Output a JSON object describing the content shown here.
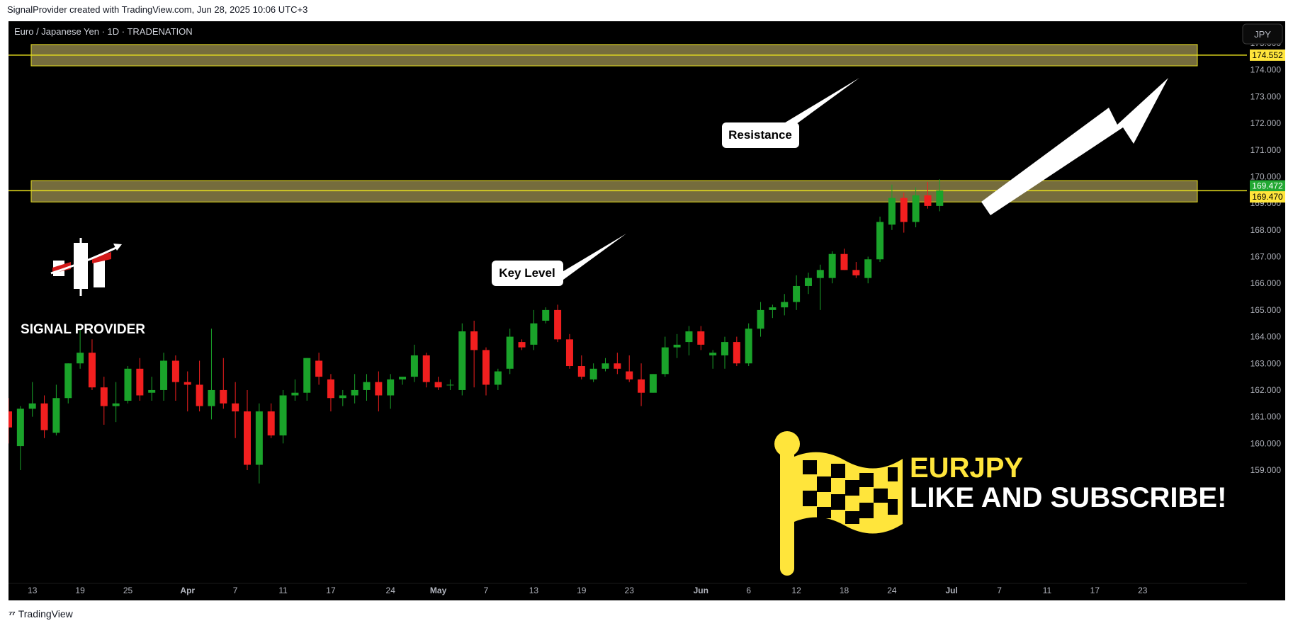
{
  "header": {
    "attribution": "SignalProvider created with TradingView.com, Jun 28, 2025 10:06 UTC+3"
  },
  "footer": {
    "brand": "TradingView"
  },
  "chart": {
    "symbol_title": "Euro / Japanese Yen · 1D · TRADENATION",
    "currency_button": "JPY",
    "logo_text": "SIGNAL PROVIDER",
    "annotations": {
      "resistance": "Resistance",
      "key_level": "Key Level"
    },
    "banner": {
      "pair": "EURJPY",
      "cta": "LIKE AND SUBSCRIBE!"
    },
    "price_tags": {
      "resistance": "174.552",
      "current": "169.472",
      "key_level": "169.470"
    }
  },
  "colors": {
    "background": "#000000",
    "up": "#1aa32a",
    "down": "#f21f1f",
    "zone_fill": "#756c3d",
    "zone_line": "#e8e01e",
    "banner_yellow": "#ffe53b",
    "current_tag": "#22a832"
  },
  "chart_data": {
    "type": "candlestick",
    "title": "Euro / Japanese Yen · 1D · TRADENATION",
    "y_axis": {
      "range": [
        158.4,
        175.3
      ],
      "ticks": [
        "159.000",
        "160.000",
        "161.000",
        "162.000",
        "163.000",
        "164.000",
        "165.000",
        "166.000",
        "167.000",
        "168.000",
        "169.000",
        "170.000",
        "171.000",
        "172.000",
        "173.000",
        "174.000",
        "175.000"
      ]
    },
    "x_axis": {
      "ticks": [
        {
          "label": "13",
          "month": false,
          "bar": 2
        },
        {
          "label": "19",
          "month": false,
          "bar": 6
        },
        {
          "label": "25",
          "month": false,
          "bar": 10
        },
        {
          "label": "Apr",
          "month": true,
          "bar": 15
        },
        {
          "label": "7",
          "month": false,
          "bar": 19
        },
        {
          "label": "11",
          "month": false,
          "bar": 23
        },
        {
          "label": "17",
          "month": false,
          "bar": 27
        },
        {
          "label": "24",
          "month": false,
          "bar": 32
        },
        {
          "label": "May",
          "month": true,
          "bar": 36
        },
        {
          "label": "7",
          "month": false,
          "bar": 40
        },
        {
          "label": "13",
          "month": false,
          "bar": 44
        },
        {
          "label": "19",
          "month": false,
          "bar": 48
        },
        {
          "label": "23",
          "month": false,
          "bar": 52
        },
        {
          "label": "Jun",
          "month": true,
          "bar": 58
        },
        {
          "label": "6",
          "month": false,
          "bar": 62
        },
        {
          "label": "12",
          "month": false,
          "bar": 66
        },
        {
          "label": "18",
          "month": false,
          "bar": 70
        },
        {
          "label": "24",
          "month": false,
          "bar": 74
        },
        {
          "label": "Jul",
          "month": true,
          "bar": 79
        },
        {
          "label": "7",
          "month": false,
          "bar": 83
        },
        {
          "label": "11",
          "month": false,
          "bar": 87
        },
        {
          "label": "17",
          "month": false,
          "bar": 91
        },
        {
          "label": "23",
          "month": false,
          "bar": 95
        }
      ]
    },
    "zones": [
      {
        "name": "Resistance",
        "low": 174.15,
        "high": 174.95,
        "line": 174.552
      },
      {
        "name": "Key Level",
        "low": 169.05,
        "high": 169.85,
        "line": 169.47
      }
    ],
    "last_price": 169.472,
    "ohlc": [
      [
        161.2,
        161.7,
        160.0,
        160.6
      ],
      [
        159.9,
        161.4,
        159.0,
        161.3
      ],
      [
        161.3,
        162.3,
        161.0,
        161.5
      ],
      [
        161.5,
        161.8,
        160.2,
        160.5
      ],
      [
        160.4,
        162.2,
        160.3,
        161.7
      ],
      [
        161.7,
        163.0,
        161.5,
        163.0
      ],
      [
        163.0,
        164.3,
        162.8,
        163.4
      ],
      [
        163.4,
        163.9,
        162.0,
        162.1
      ],
      [
        162.1,
        162.5,
        160.7,
        161.4
      ],
      [
        161.4,
        162.3,
        160.8,
        161.5
      ],
      [
        161.6,
        162.9,
        161.5,
        162.8
      ],
      [
        162.8,
        163.2,
        161.6,
        161.8
      ],
      [
        161.9,
        162.5,
        161.6,
        162.0
      ],
      [
        162.0,
        163.4,
        161.6,
        163.1
      ],
      [
        163.1,
        163.3,
        161.6,
        162.3
      ],
      [
        162.3,
        162.7,
        161.2,
        162.2
      ],
      [
        162.2,
        163.1,
        161.2,
        161.4
      ],
      [
        161.4,
        164.3,
        160.9,
        162.0
      ],
      [
        162.0,
        163.2,
        161.3,
        161.5
      ],
      [
        161.5,
        162.3,
        160.2,
        161.2
      ],
      [
        161.2,
        162.0,
        159.0,
        159.2
      ],
      [
        159.2,
        161.5,
        158.5,
        161.2
      ],
      [
        161.2,
        161.5,
        160.2,
        160.3
      ],
      [
        160.3,
        162.0,
        160.0,
        161.8
      ],
      [
        161.8,
        162.4,
        161.6,
        161.9
      ],
      [
        161.9,
        163.2,
        161.6,
        163.2
      ],
      [
        163.1,
        163.4,
        162.2,
        162.5
      ],
      [
        162.4,
        162.6,
        161.2,
        161.7
      ],
      [
        161.7,
        162.0,
        161.4,
        161.8
      ],
      [
        161.8,
        162.6,
        161.5,
        162.0
      ],
      [
        162.0,
        162.6,
        161.6,
        162.3
      ],
      [
        162.3,
        162.7,
        161.2,
        161.8
      ],
      [
        161.8,
        162.6,
        161.3,
        162.4
      ],
      [
        162.4,
        162.5,
        162.2,
        162.5
      ],
      [
        162.5,
        163.7,
        162.3,
        163.3
      ],
      [
        163.3,
        163.4,
        162.1,
        162.3
      ],
      [
        162.3,
        162.5,
        162.0,
        162.1
      ],
      [
        162.2,
        162.4,
        162.0,
        162.2
      ],
      [
        162.0,
        164.5,
        161.8,
        164.2
      ],
      [
        164.2,
        164.6,
        162.1,
        163.5
      ],
      [
        163.5,
        163.6,
        161.8,
        162.2
      ],
      [
        162.2,
        162.8,
        162.0,
        162.7
      ],
      [
        162.8,
        164.3,
        162.6,
        164.0
      ],
      [
        163.8,
        163.9,
        163.5,
        163.6
      ],
      [
        163.7,
        165.0,
        163.5,
        164.5
      ],
      [
        164.6,
        165.1,
        164.5,
        165.0
      ],
      [
        165.0,
        165.2,
        163.8,
        163.9
      ],
      [
        163.9,
        164.1,
        162.8,
        162.9
      ],
      [
        162.9,
        163.3,
        162.4,
        162.5
      ],
      [
        162.4,
        163.0,
        162.3,
        162.8
      ],
      [
        162.8,
        163.2,
        162.7,
        163.0
      ],
      [
        163.0,
        163.4,
        162.6,
        162.8
      ],
      [
        162.7,
        163.3,
        162.3,
        162.4
      ],
      [
        162.4,
        163.0,
        161.4,
        161.9
      ],
      [
        161.9,
        162.6,
        161.9,
        162.6
      ],
      [
        162.6,
        164.0,
        162.5,
        163.6
      ],
      [
        163.6,
        164.1,
        163.2,
        163.7
      ],
      [
        163.8,
        164.4,
        163.3,
        164.2
      ],
      [
        164.2,
        164.4,
        163.5,
        163.7
      ],
      [
        163.3,
        163.5,
        162.8,
        163.4
      ],
      [
        163.3,
        164.0,
        162.8,
        163.8
      ],
      [
        163.8,
        164.0,
        162.9,
        163.0
      ],
      [
        163.0,
        164.5,
        162.9,
        164.3
      ],
      [
        164.3,
        165.3,
        164.0,
        165.0
      ],
      [
        165.0,
        165.2,
        164.7,
        165.1
      ],
      [
        165.1,
        165.6,
        164.8,
        165.3
      ],
      [
        165.3,
        166.3,
        165.0,
        165.9
      ],
      [
        165.9,
        166.4,
        165.6,
        166.2
      ],
      [
        166.2,
        166.7,
        165.0,
        166.5
      ],
      [
        166.2,
        167.2,
        166.0,
        167.1
      ],
      [
        167.1,
        167.3,
        166.5,
        166.5
      ],
      [
        166.5,
        166.8,
        166.2,
        166.3
      ],
      [
        166.2,
        167.0,
        166.0,
        166.9
      ],
      [
        166.9,
        168.5,
        166.8,
        168.3
      ],
      [
        168.2,
        169.7,
        168.0,
        169.2
      ],
      [
        169.2,
        169.4,
        167.9,
        168.3
      ],
      [
        168.3,
        169.6,
        168.1,
        169.3
      ],
      [
        169.3,
        169.8,
        168.8,
        168.9
      ],
      [
        168.9,
        169.9,
        168.7,
        169.472
      ]
    ]
  }
}
